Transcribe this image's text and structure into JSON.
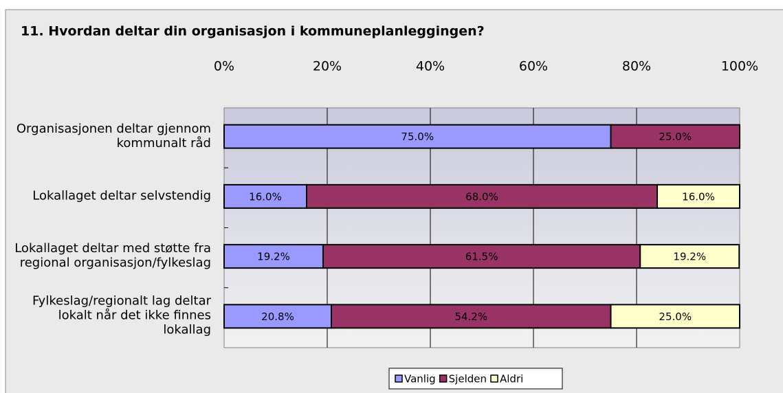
{
  "chart_data": {
    "type": "stacked-barh",
    "title": "11. Hvordan deltar din organisasjon i kommuneplanleggingen?",
    "categories": [
      "Organisasjonen deltar gjennom kommunalt råd",
      "Lokallaget deltar selvstendig",
      "Lokallaget deltar med støtte fra regional organisasjon/fylkeslag",
      "Fylkeslag/regionalt lag deltar lokalt når det ikke finnes lokallag"
    ],
    "series": [
      {
        "name": "Vanlig",
        "color": "#9999ff",
        "values": [
          75.0,
          16.0,
          19.2,
          20.8
        ],
        "value_labels": [
          "75.0%",
          "16.0%",
          "19.2%",
          "20.8%"
        ]
      },
      {
        "name": "Sjelden",
        "color": "#993366",
        "values": [
          25.0,
          68.0,
          61.5,
          54.2
        ],
        "value_labels": [
          "25.0%",
          "68.0%",
          "61.5%",
          "54.2%"
        ]
      },
      {
        "name": "Aldri",
        "color": "#ffffcc",
        "values": [
          0,
          16.0,
          19.2,
          25.0
        ],
        "value_labels": [
          null,
          "16.0%",
          "19.2%",
          "25.0%"
        ]
      }
    ],
    "xlim": [
      0,
      100
    ],
    "xticks": [
      {
        "value": 0,
        "label": "0%"
      },
      {
        "value": 20,
        "label": "20%"
      },
      {
        "value": 40,
        "label": "40%"
      },
      {
        "value": 60,
        "label": "60%"
      },
      {
        "value": 80,
        "label": "80%"
      },
      {
        "value": 100,
        "label": "100%"
      }
    ],
    "grid": true,
    "legend": "bottom"
  }
}
